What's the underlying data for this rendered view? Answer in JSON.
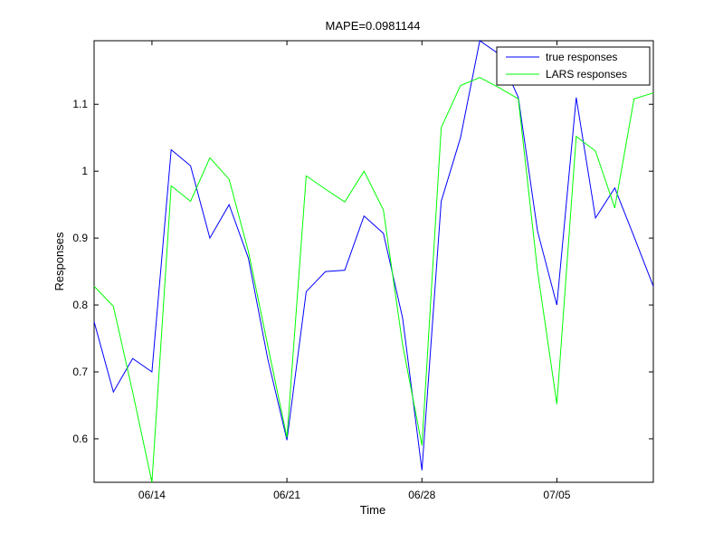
{
  "chart_data": {
    "type": "line",
    "title": "MAPE=0.0981144",
    "xlabel": "Time",
    "ylabel": "Responses",
    "x_tick_labels": [
      "06/14",
      "06/21",
      "06/28",
      "07/05"
    ],
    "x_tick_index": [
      3,
      10,
      17,
      24
    ],
    "y_ticks": [
      0.6,
      0.7,
      0.8,
      0.9,
      1,
      1.1
    ],
    "y_tick_labels": [
      "0.6",
      "0.7",
      "0.8",
      "0.9",
      "1",
      "1.1"
    ],
    "ylim": [
      0.535,
      1.195
    ],
    "x_count": 30,
    "legend": "top-right",
    "series": [
      {
        "name": "true responses",
        "color": "#0000ff",
        "values": [
          0.775,
          0.67,
          0.72,
          0.7,
          1.032,
          1.008,
          0.9,
          0.95,
          0.87,
          0.72,
          0.598,
          0.82,
          0.85,
          0.852,
          0.933,
          0.907,
          0.78,
          0.553,
          0.955,
          1.05,
          1.195,
          1.175,
          1.11,
          0.91,
          0.8,
          1.11,
          0.93,
          0.975,
          0.902,
          0.828
        ]
      },
      {
        "name": "LARS responses",
        "color": "#00ff00",
        "values": [
          0.828,
          0.798,
          0.67,
          0.535,
          0.978,
          0.955,
          1.02,
          0.988,
          0.88,
          0.74,
          0.602,
          0.993,
          0.973,
          0.954,
          1.0,
          0.942,
          0.74,
          0.59,
          1.065,
          1.128,
          1.14,
          1.125,
          1.108,
          0.85,
          0.652,
          1.052,
          1.03,
          0.945,
          1.108,
          1.117
        ]
      }
    ]
  }
}
